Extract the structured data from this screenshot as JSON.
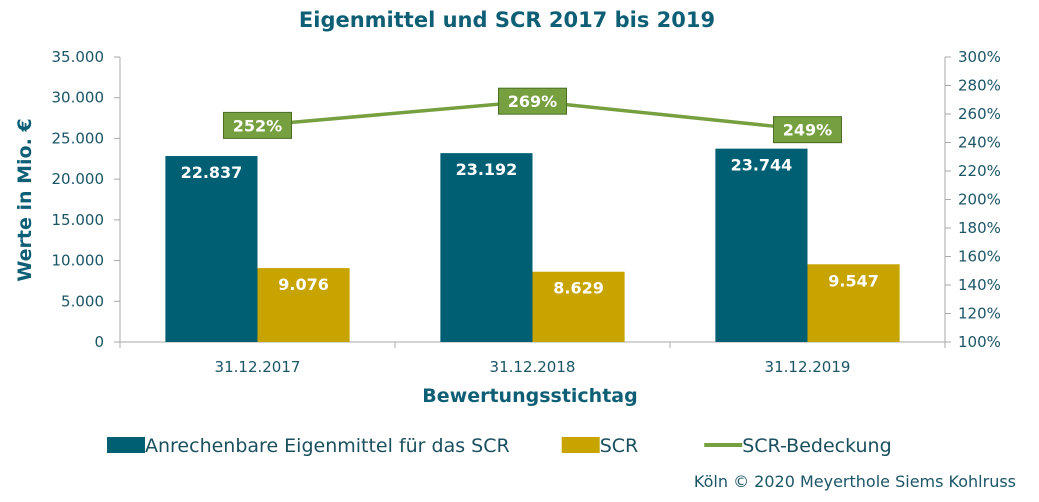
{
  "chart_data": {
    "type": "bar",
    "title": "Eigenmittel und SCR 2017 bis 2019",
    "xlabel": "Bewertungsstichtag",
    "ylabel": "Werte in Mio. €",
    "ylim": [
      0,
      35000
    ],
    "y2lim": [
      100,
      300
    ],
    "yticks": [
      "0",
      "5.000",
      "10.000",
      "15.000",
      "20.000",
      "25.000",
      "30.000",
      "35.000"
    ],
    "y2ticks": [
      "100%",
      "120%",
      "140%",
      "160%",
      "180%",
      "200%",
      "220%",
      "240%",
      "260%",
      "280%",
      "300%"
    ],
    "categories": [
      "31.12.2017",
      "31.12.2018",
      "31.12.2019"
    ],
    "series": [
      {
        "name": "Anrechenbare Eigenmittel für das SCR",
        "type": "bar",
        "color": "#005f73",
        "values": [
          22837,
          23192,
          23744
        ],
        "labels": [
          "22.837",
          "23.192",
          "23.744"
        ]
      },
      {
        "name": "SCR",
        "type": "bar",
        "color": "#c8a400",
        "values": [
          9076,
          8629,
          9547
        ],
        "labels": [
          "9.076",
          "8.629",
          "9.547"
        ]
      },
      {
        "name": "SCR-Bedeckung",
        "type": "line",
        "axis": "right",
        "color": "#76a040",
        "values": [
          252,
          269,
          249
        ],
        "labels": [
          "252%",
          "269%",
          "249%"
        ]
      }
    ],
    "legend_position": "bottom",
    "grid": false
  },
  "credit": "Köln © 2020 Meyerthole Siems Kohlruss"
}
